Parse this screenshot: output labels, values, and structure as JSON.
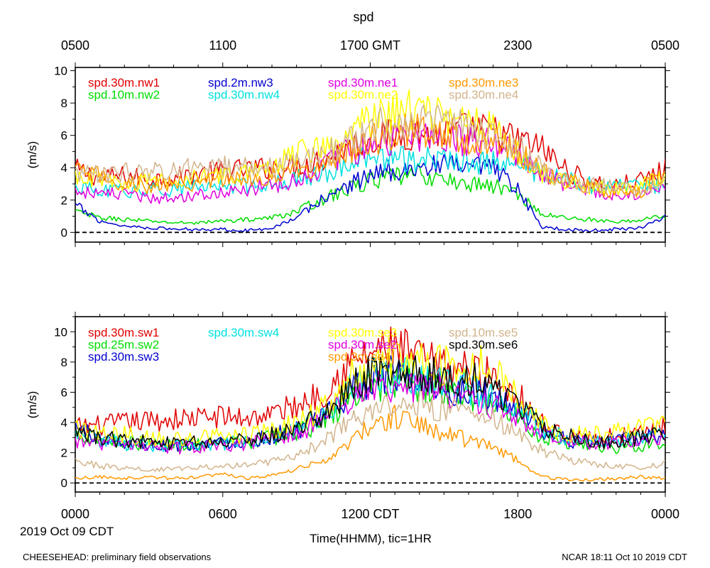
{
  "figure": {
    "title": "spd",
    "top_axis_ticks": [
      "0500",
      "1100",
      "1700 GMT",
      "2300",
      "0500"
    ],
    "bottom_axis_ticks": [
      "0000",
      "0600",
      "1200 CDT",
      "1800",
      "0000"
    ],
    "date_label": "2019 Oct 09 CDT",
    "xlabel": "Time(HHMM), tic=1HR",
    "footer_left": "CHEESEHEAD: preliminary field observations",
    "footer_right": "NCAR 18:11 Oct 10 2019 CDT"
  },
  "chart_data": [
    {
      "type": "line",
      "panel": "top",
      "ylabel": "(m/s)",
      "ylim": [
        -0.6,
        10.2
      ],
      "yticks": [
        0,
        2,
        4,
        6,
        8,
        10
      ],
      "xlim_hours": [
        0,
        24
      ],
      "x_hours": [
        0,
        1,
        2,
        3,
        4,
        5,
        6,
        7,
        8,
        9,
        10,
        11,
        12,
        13,
        14,
        15,
        16,
        17,
        18,
        19,
        20,
        21,
        22,
        23,
        24
      ],
      "zero_line": true,
      "series": [
        {
          "name": "spd.30m.nw1",
          "color": "#e00000",
          "values": [
            3.9,
            3.4,
            3.5,
            3.3,
            3.4,
            3.6,
            3.8,
            3.9,
            4.0,
            4.1,
            4.5,
            5.2,
            5.8,
            6.0,
            6.2,
            6.0,
            6.4,
            6.2,
            5.7,
            5.2,
            3.8,
            3.1,
            2.9,
            3.2,
            3.9
          ]
        },
        {
          "name": "spd.10m.nw2",
          "color": "#00dd00",
          "values": [
            1.3,
            0.9,
            0.8,
            0.7,
            0.6,
            0.6,
            0.7,
            0.8,
            0.9,
            1.3,
            2.0,
            2.6,
            3.2,
            3.4,
            3.6,
            3.2,
            3.0,
            2.9,
            2.4,
            1.1,
            0.9,
            0.8,
            0.6,
            0.8,
            1.0
          ]
        },
        {
          "name": "spd.2m.nw3",
          "color": "#0000d0",
          "values": [
            1.7,
            0.7,
            0.4,
            0.3,
            0.2,
            0.2,
            0.2,
            0.1,
            0.3,
            0.9,
            2.0,
            2.8,
            3.6,
            3.9,
            4.0,
            4.1,
            4.0,
            3.9,
            2.6,
            0.3,
            0.2,
            0.1,
            0.2,
            0.3,
            1.0
          ]
        },
        {
          "name": "spd.30m.nw4",
          "color": "#00e0e0",
          "values": [
            2.8,
            2.5,
            2.6,
            2.6,
            2.7,
            2.8,
            2.9,
            2.9,
            3.1,
            3.3,
            3.6,
            4.2,
            4.6,
            4.6,
            4.5,
            4.5,
            4.4,
            4.3,
            4.2,
            3.6,
            3.2,
            2.9,
            2.8,
            2.8,
            2.9
          ]
        },
        {
          "name": "spd.30m.ne1",
          "color": "#e000e0",
          "values": [
            2.6,
            2.4,
            2.3,
            2.1,
            2.2,
            2.4,
            2.5,
            2.6,
            2.9,
            3.3,
            4.0,
            4.9,
            5.4,
            5.9,
            6.0,
            5.9,
            5.7,
            5.4,
            4.8,
            3.8,
            3.0,
            2.6,
            2.4,
            2.2,
            2.7
          ]
        },
        {
          "name": "spd.30m.ne2",
          "color": "#ffff00",
          "values": [
            3.6,
            3.2,
            3.0,
            3.1,
            3.2,
            3.4,
            3.6,
            3.7,
            3.8,
            5.0,
            5.3,
            6.2,
            7.0,
            7.5,
            7.6,
            7.2,
            7.0,
            6.4,
            5.0,
            3.5,
            3.0,
            2.8,
            2.7,
            2.8,
            3.6
          ]
        },
        {
          "name": "spd.30m.ne3",
          "color": "#ff9900",
          "values": [
            3.8,
            3.5,
            3.0,
            2.9,
            3.0,
            3.1,
            3.2,
            3.3,
            3.5,
            3.8,
            4.2,
            5.0,
            5.6,
            6.2,
            6.5,
            6.1,
            5.8,
            5.6,
            5.0,
            3.7,
            3.2,
            2.8,
            2.5,
            2.6,
            3.6
          ]
        },
        {
          "name": "spd.30m.ne4",
          "color": "#d2b48c",
          "values": [
            3.7,
            3.5,
            3.7,
            3.8,
            3.9,
            3.9,
            4.0,
            4.1,
            4.0,
            4.3,
            4.7,
            5.6,
            6.4,
            6.8,
            7.0,
            6.6,
            6.4,
            6.0,
            5.2,
            3.9,
            3.2,
            2.9,
            2.8,
            2.6,
            3.0
          ]
        }
      ]
    },
    {
      "type": "line",
      "panel": "bottom",
      "ylabel": "(m/s)",
      "ylim": [
        -0.6,
        11.0
      ],
      "yticks": [
        0,
        2,
        4,
        6,
        8,
        10
      ],
      "xlim_hours": [
        0,
        24
      ],
      "x_hours": [
        0,
        1,
        2,
        3,
        4,
        5,
        6,
        7,
        8,
        9,
        10,
        11,
        12,
        13,
        14,
        15,
        16,
        17,
        18,
        19,
        20,
        21,
        22,
        23,
        24
      ],
      "zero_line": true,
      "series": [
        {
          "name": "spd.30m.sw1",
          "color": "#e00000",
          "values": [
            3.7,
            3.8,
            4.0,
            4.1,
            4.2,
            4.3,
            4.4,
            4.3,
            4.6,
            5.1,
            5.9,
            7.6,
            8.6,
            8.9,
            8.3,
            7.6,
            7.5,
            7.0,
            5.9,
            3.9,
            3.0,
            2.9,
            3.1,
            3.3,
            3.8
          ]
        },
        {
          "name": "spd.25m.sw2",
          "color": "#00dd00",
          "values": [
            3.3,
            2.9,
            2.7,
            2.6,
            2.5,
            2.5,
            2.6,
            2.7,
            3.0,
            3.4,
            3.9,
            5.4,
            6.4,
            6.8,
            6.5,
            6.0,
            5.8,
            5.3,
            4.4,
            3.0,
            2.7,
            2.5,
            2.3,
            2.5,
            2.7
          ]
        },
        {
          "name": "spd.30m.sw3",
          "color": "#0000d0",
          "values": [
            3.8,
            2.9,
            2.7,
            2.5,
            2.5,
            2.6,
            2.7,
            2.8,
            3.1,
            3.5,
            4.2,
            5.7,
            6.9,
            7.2,
            6.9,
            6.3,
            6.1,
            5.6,
            4.7,
            3.4,
            2.8,
            2.7,
            2.8,
            3.0,
            3.2
          ]
        },
        {
          "name": "spd.30m.sw4",
          "color": "#00e0e0",
          "values": [
            3.3,
            2.8,
            2.6,
            2.4,
            2.4,
            2.5,
            2.6,
            2.7,
            3.0,
            3.5,
            4.3,
            5.9,
            7.0,
            7.3,
            7.0,
            6.5,
            6.3,
            5.8,
            4.9,
            3.6,
            3.0,
            2.8,
            2.8,
            3.0,
            3.3
          ]
        },
        {
          "name": "spd.30m.se2",
          "color": "#e000e0",
          "values": [
            2.8,
            2.6,
            2.5,
            2.4,
            2.3,
            2.4,
            2.5,
            2.6,
            2.9,
            3.3,
            4.0,
            5.4,
            6.3,
            6.5,
            6.4,
            6.0,
            5.6,
            5.1,
            4.4,
            3.3,
            2.8,
            2.6,
            2.6,
            2.7,
            2.9
          ]
        },
        {
          "name": "spd.30m.se3",
          "color": "#ffff00",
          "values": [
            3.7,
            3.3,
            3.2,
            3.0,
            2.9,
            3.0,
            3.1,
            3.2,
            3.5,
            4.0,
            4.8,
            6.7,
            7.9,
            8.4,
            8.1,
            7.7,
            8.1,
            7.5,
            6.0,
            3.9,
            3.2,
            3.2,
            3.4,
            3.6,
            3.8
          ]
        },
        {
          "name": "spd.3m.se4",
          "color": "#ff9900",
          "values": [
            0.3,
            0.4,
            0.3,
            0.4,
            0.3,
            0.4,
            0.6,
            0.3,
            0.5,
            0.9,
            1.4,
            2.4,
            3.8,
            4.4,
            3.8,
            3.3,
            2.8,
            2.3,
            1.5,
            0.4,
            0.2,
            0.2,
            0.3,
            0.4,
            0.3
          ]
        },
        {
          "name": "spd.10m.se5",
          "color": "#d2b48c",
          "values": [
            1.5,
            1.1,
            1.0,
            0.9,
            0.9,
            1.0,
            1.1,
            1.2,
            1.4,
            1.9,
            2.6,
            3.8,
            4.8,
            5.4,
            5.3,
            4.9,
            4.7,
            4.2,
            3.3,
            2.1,
            1.6,
            1.3,
            1.1,
            1.0,
            1.3
          ]
        },
        {
          "name": "spd.30m.se6",
          "color": "#000000",
          "values": [
            3.4,
            3.0,
            2.8,
            2.7,
            2.6,
            2.7,
            2.8,
            2.9,
            3.2,
            3.7,
            4.4,
            6.0,
            7.3,
            7.7,
            7.4,
            7.0,
            6.9,
            6.3,
            5.3,
            3.8,
            3.1,
            2.7,
            2.8,
            3.0,
            3.4
          ]
        }
      ]
    }
  ]
}
